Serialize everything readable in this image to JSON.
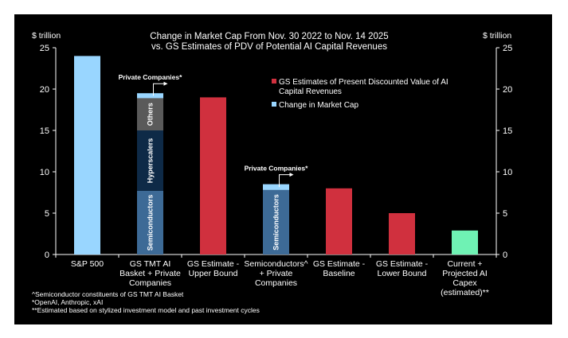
{
  "chart_data": {
    "type": "bar",
    "title_lines": [
      "Change in Market Cap From Nov. 30 2022 to Nov. 14 2025",
      "vs. GS Estimates of PDV of Potential AI Capital Revenues"
    ],
    "y_unit_left": "$ trillion",
    "y_unit_right": "$ trillion",
    "ylim": [
      0,
      25
    ],
    "yticks": [
      0,
      5,
      10,
      15,
      20,
      25
    ],
    "grid": false,
    "legend_position": "top-right",
    "legend": [
      {
        "label": "GS Estimates of Present Discounted Value of AI Capital Revenues",
        "lines": [
          "GS Estimates of Present Discounted Value of AI",
          "Capital Revenues"
        ],
        "color": "#d0303e"
      },
      {
        "label": "Change in Market Cap",
        "lines": [
          "Change in Market Cap"
        ],
        "color": "#99d6ff"
      }
    ],
    "categories": [
      {
        "lines": [
          "S&P 500"
        ]
      },
      {
        "lines": [
          "GS TMT AI",
          "Basket + Private",
          "Companies"
        ]
      },
      {
        "lines": [
          "GS Estimate -",
          "Upper Bound"
        ]
      },
      {
        "lines": [
          "Semiconductors^",
          "+ Private",
          "Companies"
        ]
      },
      {
        "lines": [
          "GS Estimate -",
          "Baseline"
        ]
      },
      {
        "lines": [
          "GS Estimate -",
          "Lower Bound"
        ]
      },
      {
        "lines": [
          "Current +",
          "Projected AI",
          "Capex",
          "(estimated)**"
        ]
      }
    ],
    "bars": [
      {
        "segments": [
          {
            "value": 24,
            "color": "#99d6ff"
          }
        ]
      },
      {
        "segments": [
          {
            "value": 7.7,
            "label": "Semiconductors",
            "color": "#3d6a96"
          },
          {
            "value": 7.3,
            "label": "Hyperscalers",
            "color": "#0e2a47"
          },
          {
            "value": 3.9,
            "label": "Others",
            "color": "#5a5a5a"
          },
          {
            "value": 0.6,
            "color": "#99d6ff"
          }
        ],
        "callout": "Private Companies*"
      },
      {
        "segments": [
          {
            "value": 19,
            "color": "#d0303e"
          }
        ]
      },
      {
        "segments": [
          {
            "value": 7.8,
            "label": "Semiconductors",
            "color": "#3d6a96"
          },
          {
            "value": 0.7,
            "color": "#99d6ff"
          }
        ],
        "callout": "Private Companies*"
      },
      {
        "segments": [
          {
            "value": 8,
            "color": "#d0303e"
          }
        ]
      },
      {
        "segments": [
          {
            "value": 5,
            "color": "#d0303e"
          }
        ]
      },
      {
        "segments": [
          {
            "value": 2.9,
            "color": "#6ff2b4"
          }
        ]
      }
    ],
    "footnotes": [
      "^Semiconductor constituents of GS TMT  AI Basket",
      "*OpenAI, Anthropic, xAI",
      "**Estimated  based on stylized investment model and past investment cycles"
    ]
  }
}
